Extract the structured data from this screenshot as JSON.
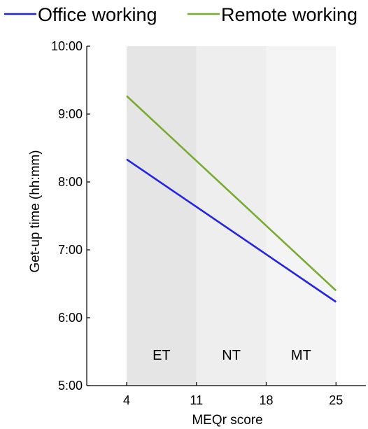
{
  "chart_data": {
    "type": "line",
    "xlabel": "MEQr score",
    "ylabel": "Get-up time (hh:mm)",
    "xlim": [
      0,
      28
    ],
    "x_ticks": [
      4,
      11,
      18,
      25
    ],
    "ylim_minutes": [
      300,
      600
    ],
    "y_ticks": [
      {
        "label": "5:00",
        "minutes": 300
      },
      {
        "label": "6:00",
        "minutes": 360
      },
      {
        "label": "7:00",
        "minutes": 420
      },
      {
        "label": "8:00",
        "minutes": 480
      },
      {
        "label": "9:00",
        "minutes": 540
      },
      {
        "label": "10:00",
        "minutes": 600
      }
    ],
    "bands": [
      {
        "label": "ET",
        "x": [
          4,
          11
        ],
        "color": "#e5e5e5"
      },
      {
        "label": "NT",
        "x": [
          11,
          18
        ],
        "color": "#eeeeee"
      },
      {
        "label": "MT",
        "x": [
          18,
          25
        ],
        "color": "#f4f4f4"
      }
    ],
    "series": [
      {
        "name": "Office working",
        "color": "#2323e6",
        "x": [
          4,
          25
        ],
        "y_minutes": [
          500,
          374
        ]
      },
      {
        "name": "Remote working",
        "color": "#77ac30",
        "x": [
          4,
          25
        ],
        "y_minutes": [
          556,
          384
        ]
      }
    ],
    "legend_position": "top"
  }
}
